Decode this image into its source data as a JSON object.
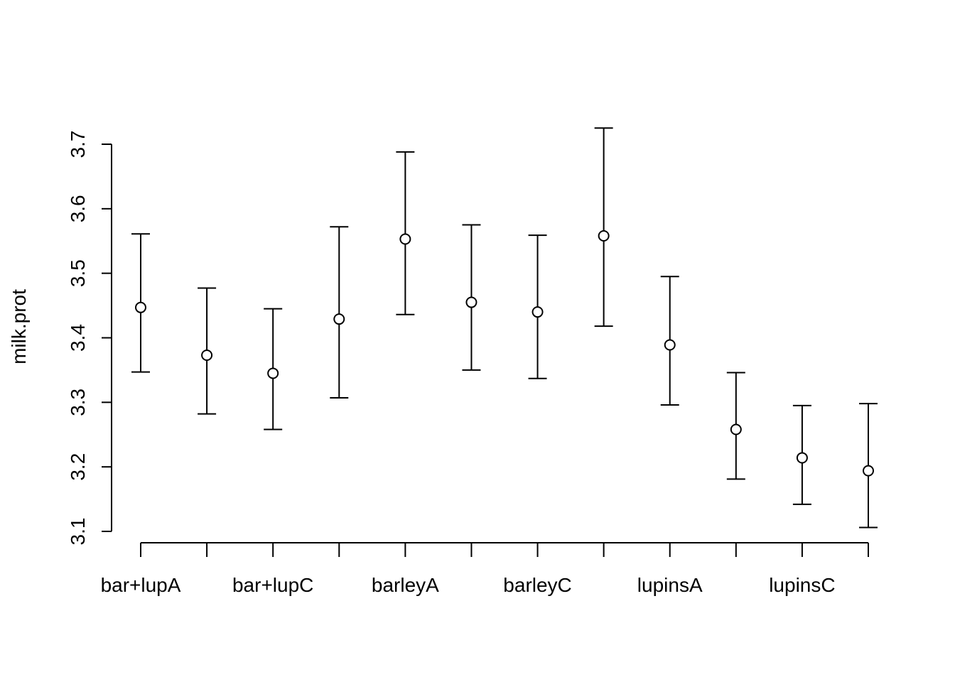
{
  "chart_data": {
    "type": "scatter",
    "ylabel": "milk.prot",
    "xlabel": "",
    "ylim": [
      3.1,
      3.7
    ],
    "yticks": [
      "3.1",
      "3.2",
      "3.3",
      "3.4",
      "3.5",
      "3.6",
      "3.7"
    ],
    "x_tick_labels_shown": [
      "bar+lupA",
      "bar+lupC",
      "barleyA",
      "barleyC",
      "lupinsA",
      "lupinsC"
    ],
    "groups": 12,
    "grid": false,
    "series": [
      {
        "mean": [
          3.447,
          3.373,
          3.345,
          3.429,
          3.553,
          3.455,
          3.44,
          3.558,
          3.389,
          3.258,
          3.214,
          3.194
        ],
        "lower": [
          3.347,
          3.282,
          3.258,
          3.307,
          3.436,
          3.35,
          3.337,
          3.418,
          3.296,
          3.181,
          3.142,
          3.106
        ],
        "upper": [
          3.561,
          3.477,
          3.445,
          3.572,
          3.688,
          3.575,
          3.559,
          3.725,
          3.495,
          3.346,
          3.295,
          3.298
        ]
      }
    ]
  }
}
